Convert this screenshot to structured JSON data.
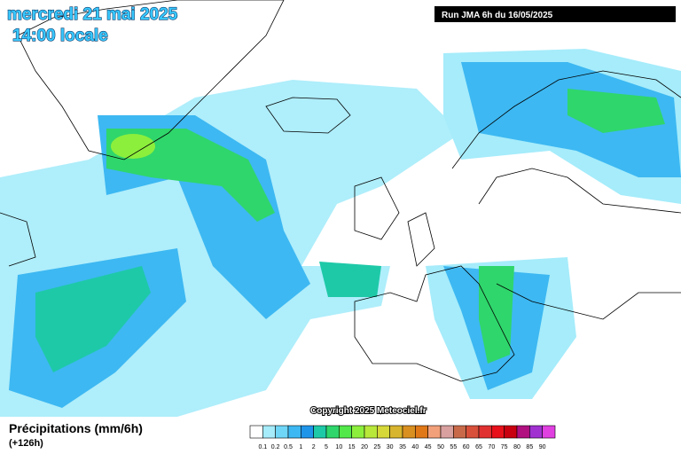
{
  "header": {
    "date": "mercredi 21 mai 2025",
    "time": "14:00 locale",
    "run": "Run JMA 6h du 16/05/2025"
  },
  "copyright": "Copyright 2025 Meteociel.fr",
  "legend": {
    "title": "Précipitations (mm/6h)",
    "lead": "(+126h)",
    "labels": [
      0.1,
      0.2,
      0.5,
      1,
      2,
      5,
      10,
      15,
      20,
      25,
      30,
      35,
      40,
      45,
      50,
      55,
      60,
      65,
      70,
      75,
      80,
      85,
      90
    ],
    "colors": [
      "#ffffff",
      "#a6ecfb",
      "#6fd6f8",
      "#3db8f2",
      "#1f95ea",
      "#1ec9a8",
      "#2fd66b",
      "#52e84a",
      "#8cef3c",
      "#b8e83a",
      "#d6d83a",
      "#d8b52e",
      "#d99020",
      "#e07818",
      "#f2a07a",
      "#d9a0a0",
      "#c86a4a",
      "#d8503a",
      "#e03030",
      "#e8101a",
      "#c80010",
      "#b01080",
      "#a030d0",
      "#e040e0"
    ]
  }
}
